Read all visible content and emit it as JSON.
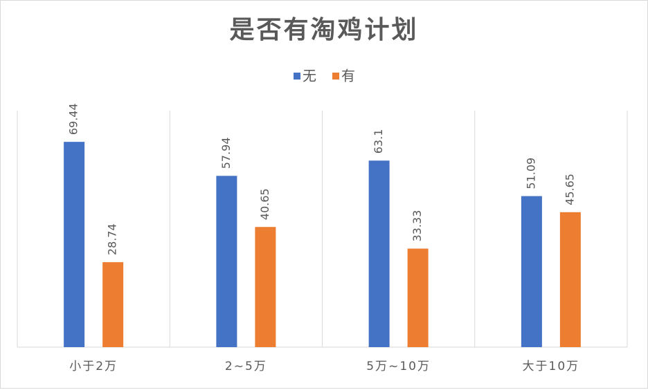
{
  "chart_data": {
    "type": "bar",
    "title": "是否有淘鸡计划",
    "categories": [
      "小于2万",
      "2~5万",
      "5万~10万",
      "大于10万"
    ],
    "series": [
      {
        "name": "无",
        "color": "#4472c4",
        "values": [
          69.44,
          57.94,
          63.1,
          51.09
        ]
      },
      {
        "name": "有",
        "color": "#ed7d31",
        "values": [
          28.74,
          40.65,
          33.33,
          45.65
        ]
      }
    ],
    "ylim": [
      0,
      80
    ],
    "legend": "top"
  }
}
